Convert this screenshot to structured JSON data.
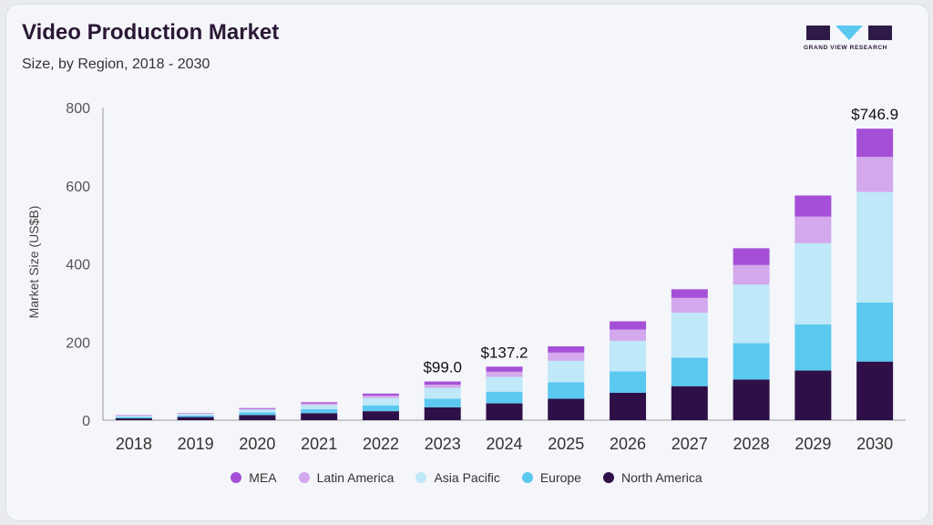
{
  "header": {
    "title": "Video Production Market",
    "subtitle": "Size, by Region, 2018 - 2030"
  },
  "logo": {
    "text": "GRAND VIEW RESEARCH",
    "icon": "gvr-logo-icon"
  },
  "chart_data": {
    "type": "bar",
    "stacked": true,
    "title": "Video Production Market",
    "subtitle": "Size, by Region, 2018 - 2030",
    "xlabel": "",
    "ylabel": "Market Size (US$B)",
    "ylim": [
      0,
      800
    ],
    "yticks": [
      0,
      200,
      400,
      600,
      800
    ],
    "grid": false,
    "legend_position": "bottom",
    "categories": [
      "2018",
      "2019",
      "2020",
      "2021",
      "2022",
      "2023",
      "2024",
      "2025",
      "2026",
      "2027",
      "2028",
      "2029",
      "2030"
    ],
    "series": [
      {
        "name": "North America",
        "color": "#2e0f47",
        "values": [
          5,
          8,
          13,
          18,
          23,
          33,
          43,
          55,
          70,
          87,
          104,
          127,
          150
        ]
      },
      {
        "name": "Europe",
        "color": "#5bc8f0",
        "values": [
          3,
          4,
          7,
          10,
          15,
          22,
          30,
          42,
          55,
          73,
          93,
          118,
          151
        ]
      },
      {
        "name": "Asia Pacific",
        "color": "#bfe8f8",
        "values": [
          3,
          4,
          7,
          11,
          19,
          28,
          38,
          55,
          78,
          115,
          150,
          208,
          283
        ]
      },
      {
        "name": "Latin America",
        "color": "#d3a8ec",
        "values": [
          1,
          1,
          2,
          4,
          6,
          8,
          13,
          21,
          29,
          38,
          50,
          68,
          90
        ]
      },
      {
        "name": "MEA",
        "color": "#a54fd6",
        "values": [
          1,
          1,
          2,
          3,
          5,
          8,
          13,
          16,
          21,
          22,
          43,
          54,
          72
        ]
      }
    ],
    "totals_labels": [
      {
        "category": "2023",
        "label": "$99.0"
      },
      {
        "category": "2024",
        "label": "$137.2"
      },
      {
        "category": "2030",
        "label": "$746.9"
      }
    ]
  }
}
